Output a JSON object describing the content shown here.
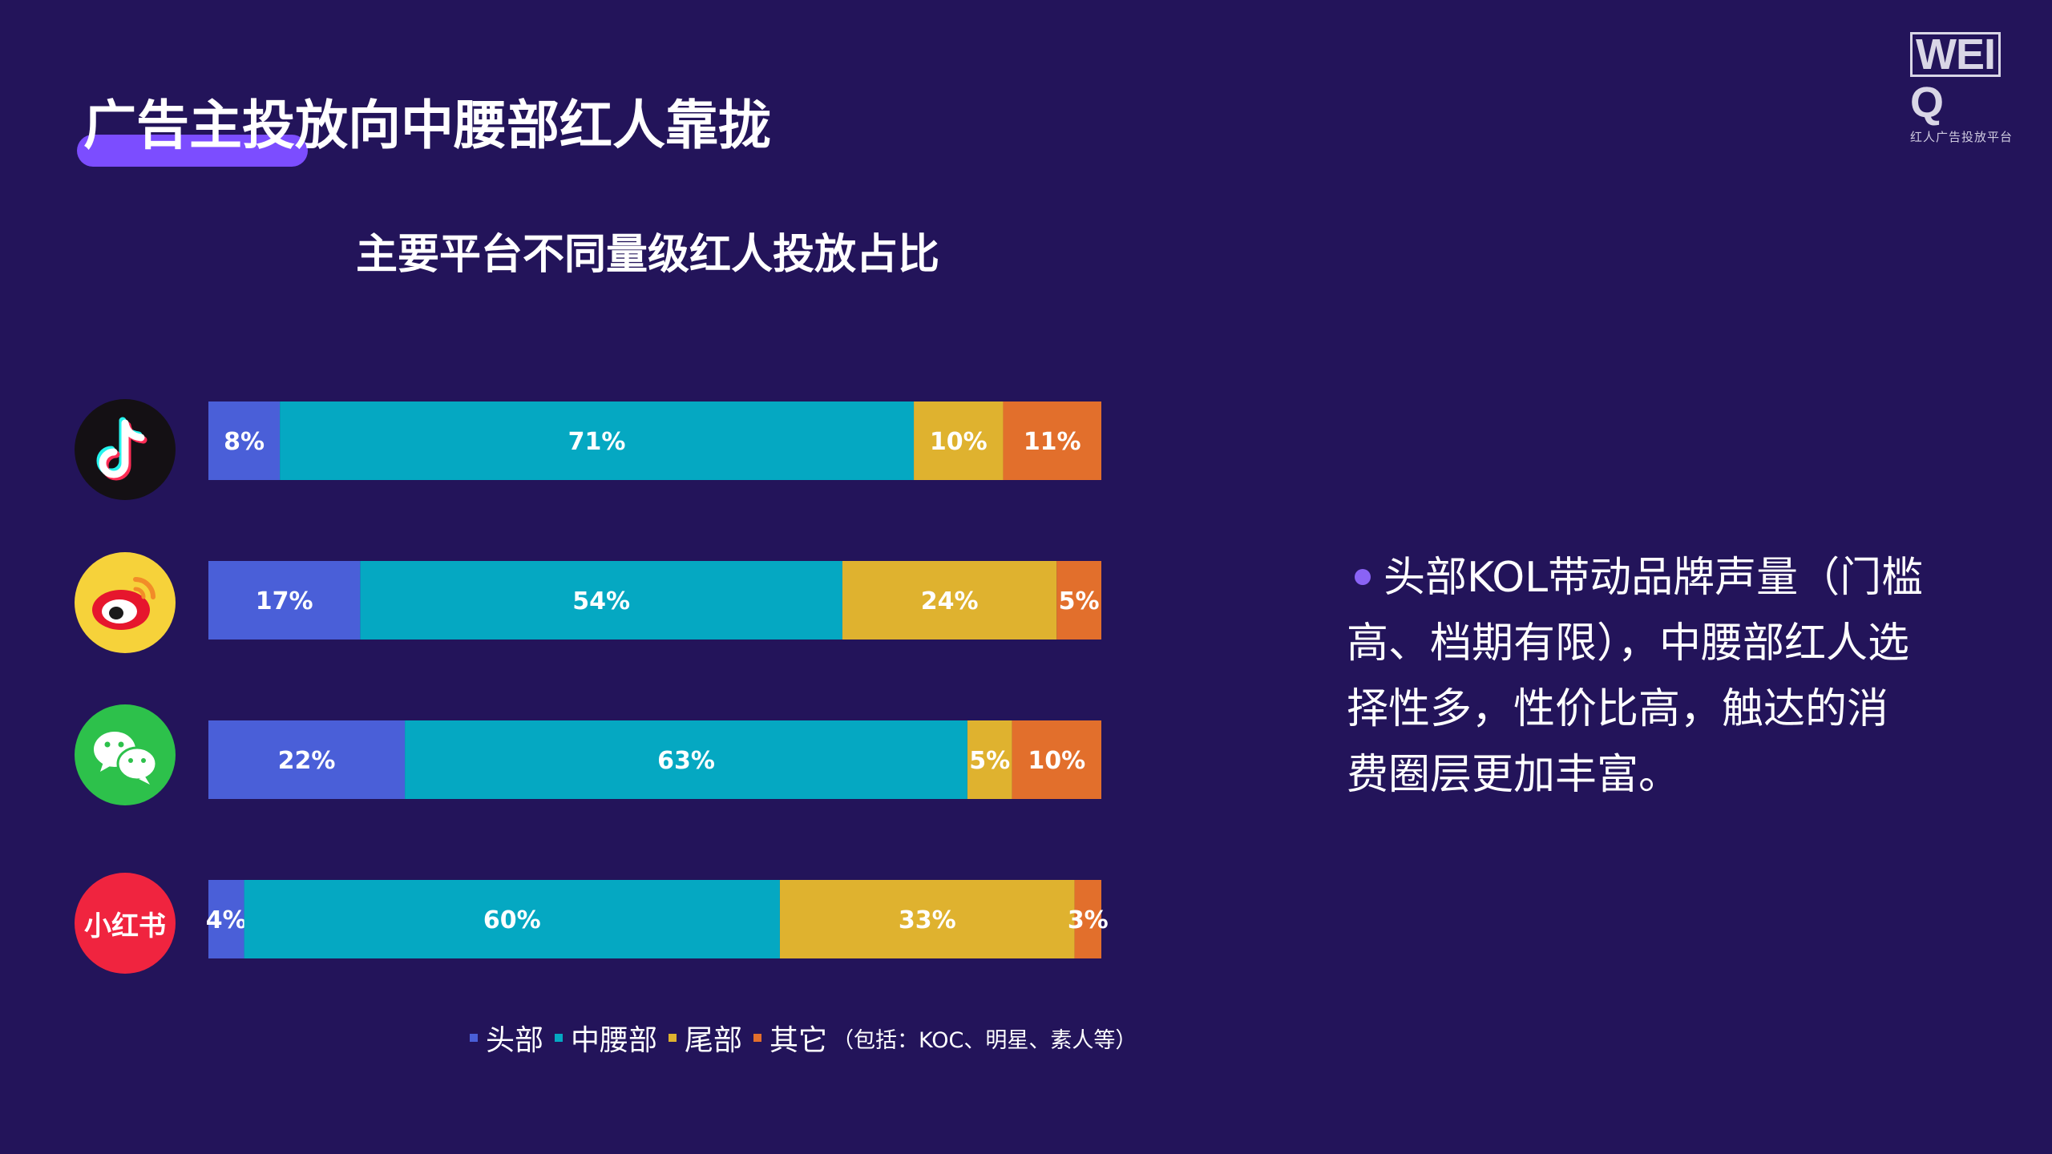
{
  "logo": {
    "mark_boxed": "WEI",
    "mark_tail": "Q",
    "tagline": "红人广告投放平台"
  },
  "page_title": "广告主投放向中腰部红人靠拢",
  "platforms": [
    {
      "icon": "douyin-icon"
    },
    {
      "icon": "weibo-icon"
    },
    {
      "icon": "wechat-icon"
    },
    {
      "icon": "xiaohongshu-icon",
      "label": "小红书"
    }
  ],
  "colors": {
    "background": "#23145a",
    "accent": "#7c4dff"
  },
  "chart_data": {
    "type": "bar",
    "orientation": "horizontal",
    "stacked": true,
    "title": "主要平台不同量级红人投放占比",
    "series": [
      {
        "name": "头部",
        "color": "#4a5fd8",
        "values": [
          8,
          17,
          22,
          4
        ]
      },
      {
        "name": "中腰部",
        "color": "#05a8c2",
        "values": [
          71,
          54,
          63,
          60
        ]
      },
      {
        "name": "尾部",
        "color": "#dfb22f",
        "values": [
          10,
          24,
          5,
          33
        ]
      },
      {
        "name": "其它",
        "color": "#e26f2c",
        "values": [
          11,
          5,
          10,
          3
        ]
      }
    ],
    "labels": [
      [
        "8%",
        "71%",
        "10%",
        "11%"
      ],
      [
        "17%",
        "54%",
        "24%",
        "5%"
      ],
      [
        "22%",
        "63%",
        "5%",
        "10%"
      ],
      [
        "4%",
        "60%",
        "33%",
        "3%"
      ]
    ],
    "legend_note": "（包括：KOC、明星、素人等）",
    "xlim": [
      0,
      100
    ],
    "grid": false,
    "legend_position": "bottom"
  },
  "note": {
    "text": "头部KOL带动品牌声量（门槛高、档期有限），中腰部红人选择性多，性价比高，触达的消费圈层更加丰富。"
  }
}
